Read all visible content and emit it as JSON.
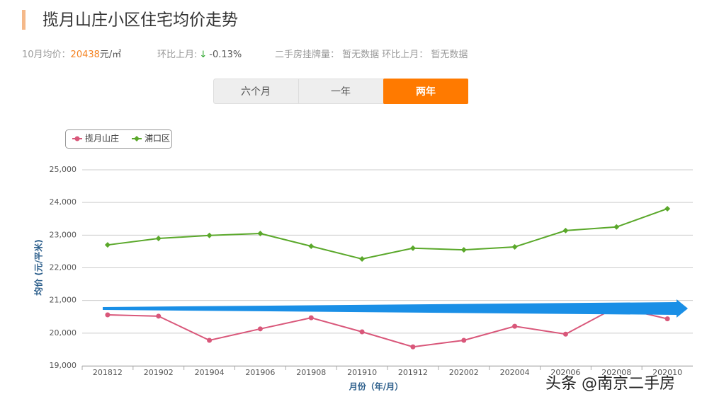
{
  "header": {
    "title": "揽月山庄小区住宅均价走势",
    "price_label": "10月均价：",
    "price": "20438",
    "price_unit": "元/㎡",
    "change_label": "环比上月:",
    "change_arrow": "↓",
    "change": "-0.13%",
    "listing": "二手房挂牌量： 暂无数据 环比上月： 暂无数据"
  },
  "tabs": [
    "六个月",
    "一年",
    "两年"
  ],
  "watermark": "头条 @南京二手房",
  "chart_data": {
    "type": "line",
    "x_label": "月份（年/月）",
    "y_label": "均价 (元/平米)",
    "categories": [
      "201812",
      "201902",
      "201904",
      "201906",
      "201908",
      "201910",
      "201912",
      "202002",
      "202004",
      "202006",
      "202008",
      "202010"
    ],
    "series": [
      {
        "name": "揽月山庄",
        "color": "#d9577a",
        "marker": "circle",
        "values": [
          20560,
          20520,
          19780,
          20130,
          20470,
          20040,
          19580,
          19780,
          20210,
          19970,
          20800,
          20438
        ]
      },
      {
        "name": "浦口区",
        "color": "#5aa82a",
        "marker": "diamond",
        "values": [
          22700,
          22900,
          22990,
          23050,
          22660,
          22270,
          22600,
          22550,
          22640,
          23140,
          23250,
          23810
        ]
      }
    ],
    "ylim": [
      19000,
      25000
    ],
    "yticks": [
      {
        "value": 19000,
        "label": "19,000"
      },
      {
        "value": 20000,
        "label": "20,000"
      },
      {
        "value": 21000,
        "label": "21,000"
      },
      {
        "value": 22000,
        "label": "22,000"
      },
      {
        "value": 23000,
        "label": "23,000"
      },
      {
        "value": 24000,
        "label": "24,000"
      },
      {
        "value": 25000,
        "label": "25,000"
      }
    ],
    "grid": true
  }
}
